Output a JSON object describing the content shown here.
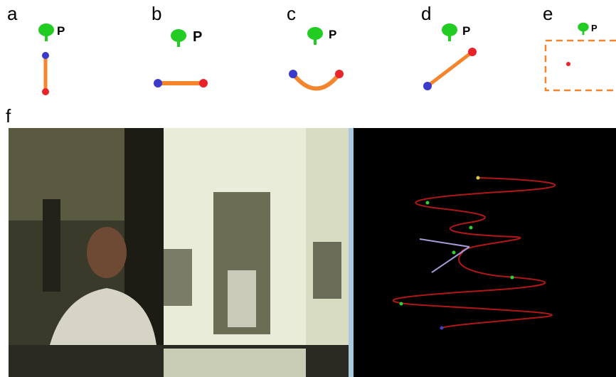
{
  "panels": [
    {
      "label": "a",
      "marker": "P"
    },
    {
      "label": "b",
      "marker": "P"
    },
    {
      "label": "c",
      "marker": "P"
    },
    {
      "label": "d",
      "marker": "P"
    },
    {
      "label": "e",
      "marker": "P"
    }
  ],
  "panel_f": {
    "label": "f"
  }
}
